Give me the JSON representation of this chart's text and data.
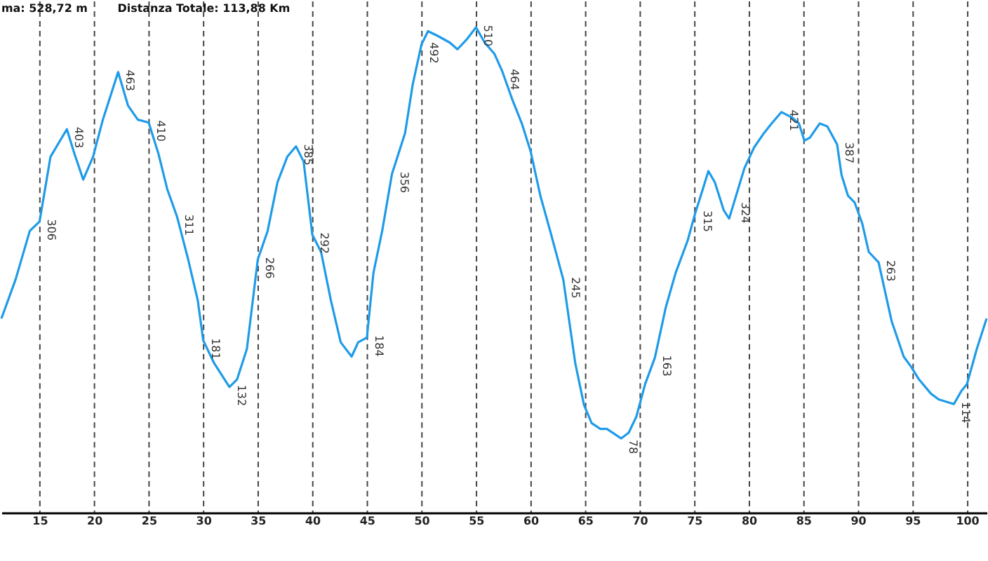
{
  "chart_data": {
    "type": "line",
    "annotations": [
      "ma: 528,72 m",
      "Distanza Totale: 113,88 Km"
    ],
    "x": [
      11.5,
      12.8,
      14.1,
      15.0,
      16.0,
      17.5,
      18.2,
      19.0,
      19.9,
      20.8,
      22.2,
      23.1,
      24.0,
      25.0,
      25.9,
      26.7,
      27.6,
      28.6,
      29.5,
      30.0,
      31.0,
      32.4,
      33.1,
      34.0,
      35.0,
      35.9,
      36.8,
      37.7,
      38.5,
      39.2,
      40.0,
      40.8,
      41.7,
      42.6,
      43.6,
      44.2,
      45.0,
      45.6,
      46.4,
      47.3,
      48.5,
      49.2,
      50.0,
      50.6,
      51.5,
      52.6,
      53.3,
      54.2,
      55.0,
      55.8,
      56.7,
      57.4,
      58.3,
      59.2,
      60.0,
      60.9,
      61.8,
      63.0,
      64.1,
      64.9,
      65.6,
      66.4,
      67.0,
      68.3,
      69.0,
      69.7,
      70.5,
      71.4,
      72.4,
      73.3,
      74.4,
      75.1,
      75.6,
      76.3,
      76.9,
      77.7,
      78.2,
      78.6,
      79.6,
      80.5,
      81.4,
      82.1,
      83.0,
      84.0,
      84.6,
      85.1,
      85.6,
      86.5,
      87.2,
      88.1,
      88.5,
      89.1,
      89.7,
      90.4,
      91.0,
      91.9,
      93.1,
      94.2,
      94.9,
      95.6,
      96.7,
      97.4,
      98.8,
      99.5,
      100.0,
      100.9,
      101.8
    ],
    "values": [
      204,
      245,
      296,
      306,
      374,
      403,
      377,
      350,
      374,
      413,
      463,
      428,
      413,
      410,
      377,
      340,
      311,
      267,
      223,
      181,
      157,
      132,
      140,
      172,
      266,
      296,
      347,
      374,
      385,
      369,
      292,
      274,
      223,
      179,
      164,
      179,
      184,
      252,
      296,
      356,
      399,
      450,
      492,
      506,
      501,
      494,
      487,
      498,
      510,
      494,
      482,
      464,
      435,
      409,
      380,
      333,
      296,
      245,
      157,
      113,
      94,
      88,
      88,
      78,
      84,
      101,
      135,
      163,
      216,
      252,
      286,
      315,
      333,
      359,
      347,
      318,
      309,
      324,
      362,
      384,
      399,
      409,
      421,
      415,
      409,
      391,
      394,
      409,
      406,
      387,
      355,
      333,
      326,
      304,
      274,
      263,
      201,
      164,
      153,
      140,
      125,
      119,
      114,
      128,
      135,
      172,
      204
    ],
    "value_labels": [
      null,
      null,
      null,
      "306",
      null,
      "403",
      null,
      null,
      null,
      null,
      "463",
      null,
      null,
      "410",
      null,
      null,
      "311",
      null,
      null,
      "181",
      null,
      "132",
      null,
      null,
      "266",
      null,
      null,
      null,
      "385",
      null,
      "292",
      null,
      null,
      null,
      null,
      null,
      "184",
      null,
      null,
      "356",
      null,
      null,
      "492",
      null,
      null,
      null,
      null,
      null,
      "510",
      null,
      null,
      "464",
      null,
      null,
      null,
      null,
      null,
      "245",
      null,
      null,
      null,
      null,
      null,
      "78",
      null,
      null,
      null,
      "163",
      null,
      null,
      null,
      "315",
      null,
      null,
      null,
      null,
      null,
      "324",
      null,
      null,
      null,
      null,
      "421",
      null,
      null,
      null,
      null,
      null,
      null,
      "387",
      null,
      null,
      null,
      null,
      null,
      "263",
      null,
      null,
      null,
      null,
      null,
      null,
      "114",
      null,
      null,
      null,
      null
    ],
    "color": "#1e9be8",
    "xlim": [
      11.5,
      101.8
    ],
    "xticks": [
      15,
      20,
      25,
      30,
      35,
      40,
      45,
      50,
      55,
      60,
      65,
      70,
      75,
      80,
      85,
      90,
      95,
      100
    ],
    "ylim": [
      0,
      538
    ],
    "tick_labels": "x",
    "grid": "x"
  }
}
